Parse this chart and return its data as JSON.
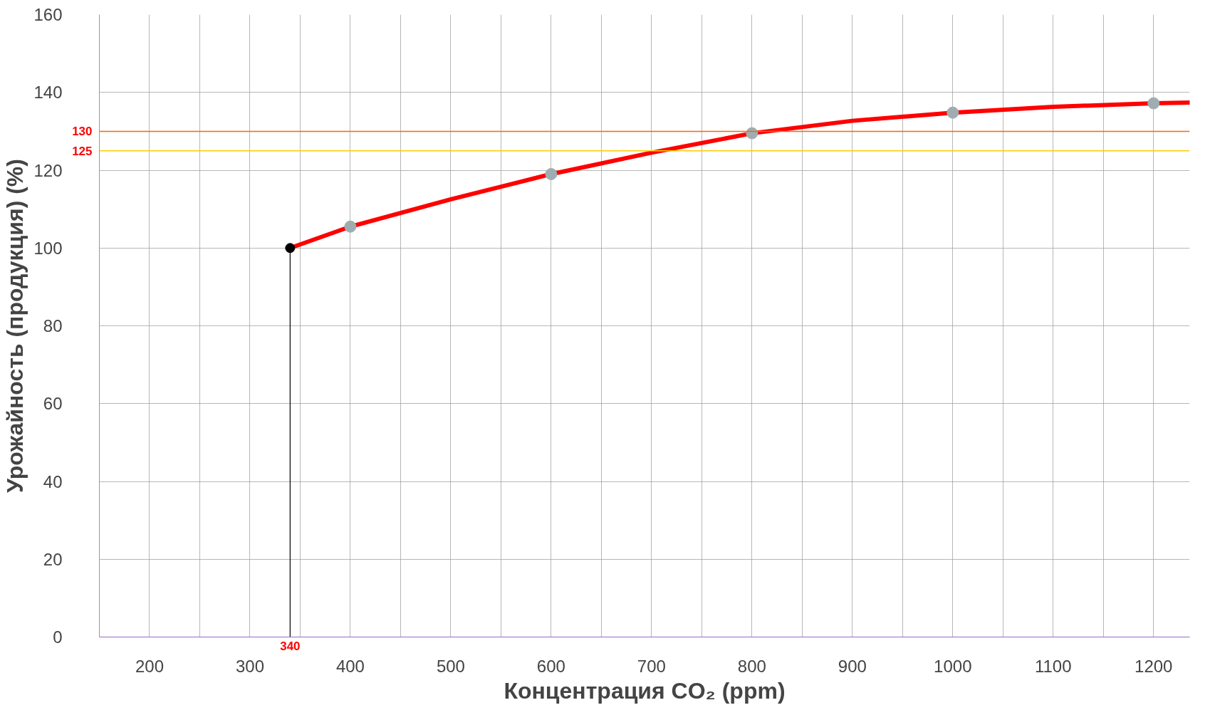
{
  "chart_data": {
    "type": "line",
    "xlabel": "Концентрация CO₂ (ppm)",
    "ylabel": "Урожайность (продукция) (%)",
    "xlim": [
      150,
      1236
    ],
    "ylim": [
      0,
      160
    ],
    "xticks": [
      200,
      {
        "value": 250,
        "label": null
      },
      300,
      {
        "value": 350,
        "label": null
      },
      400,
      {
        "value": 450,
        "label": null
      },
      500,
      {
        "value": 550,
        "label": null
      },
      600,
      {
        "value": 650,
        "label": null
      },
      700,
      {
        "value": 750,
        "label": null
      },
      800,
      {
        "value": 850,
        "label": null
      },
      900,
      {
        "value": 950,
        "label": null
      },
      1000,
      {
        "value": 1050,
        "label": null
      },
      1100,
      {
        "value": 1150,
        "label": null
      },
      1200
    ],
    "yticks": [
      0,
      20,
      40,
      60,
      80,
      100,
      120,
      140,
      160
    ],
    "grid": true,
    "series": [
      {
        "color": "#ff0000",
        "marker": "none",
        "x": [
          340,
          400,
          500,
          600,
          700,
          800,
          900,
          1000,
          1100,
          1200,
          1236
        ],
        "values": [
          100,
          105.5,
          112.5,
          119,
          124.5,
          129.5,
          132.7,
          134.8,
          136.3,
          137.2,
          137.4
        ]
      },
      {
        "type": "scatter",
        "color": "#a0adb0",
        "marker": "circle",
        "x": [
          400,
          600,
          800,
          1000,
          1200
        ],
        "values": [
          105.5,
          119,
          129.5,
          134.8,
          137.2
        ]
      },
      {
        "type": "scatter",
        "color": "#000000",
        "marker": "circle",
        "x": [
          340
        ],
        "values": [
          100
        ]
      },
      {
        "type": "line",
        "color": "#000000",
        "marker": "none",
        "x": [
          340,
          340
        ],
        "values": [
          0,
          100
        ]
      }
    ],
    "ref_lines": [
      {
        "axis": "y",
        "value": 130,
        "label": "130",
        "color": "#ff6600"
      },
      {
        "axis": "y",
        "value": 125,
        "label": "125",
        "color": "#ffcc00"
      }
    ],
    "annotations": [
      {
        "text": "340",
        "x": 340,
        "y": 0
      }
    ]
  }
}
